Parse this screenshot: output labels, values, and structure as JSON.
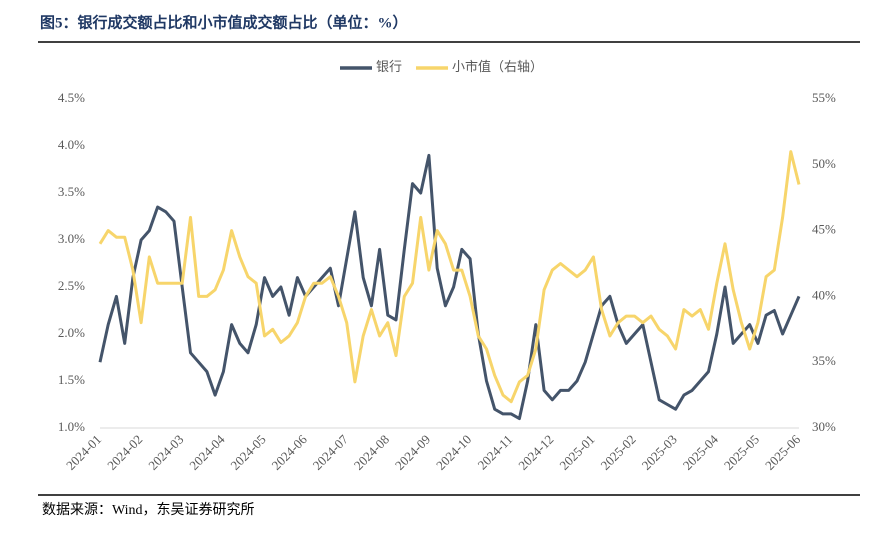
{
  "chart_data": {
    "type": "line",
    "title": "图5：银行成交额占比和小市值成交额占比（单位：%）",
    "source": "数据来源：Wind，东吴证券研究所",
    "categories": [
      "2024-01",
      null,
      null,
      null,
      null,
      "2024-02",
      null,
      null,
      null,
      null,
      "2024-03",
      null,
      null,
      null,
      null,
      "2024-04",
      null,
      null,
      null,
      null,
      "2024-05",
      null,
      null,
      null,
      null,
      "2024-06",
      null,
      null,
      null,
      null,
      "2024-07",
      null,
      null,
      null,
      null,
      "2024-08",
      null,
      null,
      null,
      null,
      "2024-09",
      null,
      null,
      null,
      null,
      "2024-10",
      null,
      null,
      null,
      null,
      "2024-11",
      null,
      null,
      null,
      null,
      "2024-12",
      null,
      null,
      null,
      null,
      "2025-01",
      null,
      null,
      null,
      null,
      "2025-02",
      null,
      null,
      null,
      null,
      "2025-03",
      null,
      null,
      null,
      null,
      "2025-04",
      null,
      null,
      null,
      null,
      "2025-05",
      null,
      null,
      null,
      null,
      "2025-06"
    ],
    "series": [
      {
        "name": "银行",
        "color": "#44546a",
        "axis": "y",
        "values": [
          1.7,
          2.1,
          2.4,
          1.9,
          2.6,
          3.0,
          3.1,
          3.35,
          3.3,
          3.2,
          2.5,
          1.8,
          1.7,
          1.6,
          1.35,
          1.6,
          2.1,
          1.9,
          1.8,
          2.1,
          2.6,
          2.4,
          2.5,
          2.2,
          2.6,
          2.4,
          2.5,
          2.6,
          2.7,
          2.3,
          2.8,
          3.3,
          2.6,
          2.3,
          2.9,
          2.2,
          2.15,
          2.9,
          3.6,
          3.5,
          3.9,
          2.7,
          2.3,
          2.5,
          2.9,
          2.8,
          2.0,
          1.5,
          1.2,
          1.15,
          1.15,
          1.1,
          1.5,
          2.1,
          1.4,
          1.3,
          1.4,
          1.4,
          1.5,
          1.7,
          2.0,
          2.3,
          2.4,
          2.1,
          1.9,
          2.0,
          2.1,
          1.7,
          1.3,
          1.25,
          1.2,
          1.35,
          1.4,
          1.5,
          1.6,
          2.0,
          2.5,
          1.9,
          2.0,
          2.1,
          1.9,
          2.2,
          2.25,
          2.0,
          2.2,
          2.4
        ]
      },
      {
        "name": "小市值（右轴）",
        "color": "#f7d56b",
        "axis": "y2",
        "values": [
          44,
          45,
          44.5,
          44.5,
          42,
          38,
          43,
          41,
          41,
          41,
          41,
          46,
          40,
          40,
          40.5,
          42,
          45,
          43,
          41.5,
          41,
          37,
          37.5,
          36.5,
          37,
          38,
          40,
          41,
          41,
          41.5,
          40,
          38,
          33.5,
          37,
          39,
          37,
          38,
          35.5,
          40,
          41,
          46,
          42,
          45,
          44,
          42,
          42,
          40,
          37,
          36,
          34,
          32.5,
          32,
          33.5,
          34,
          36,
          40.5,
          42,
          42.5,
          42,
          41.5,
          42,
          43,
          39,
          37,
          38,
          38.5,
          38.5,
          38,
          38.5,
          37.5,
          37,
          36,
          39,
          38.5,
          39,
          37.5,
          41,
          44,
          40.5,
          38,
          36,
          38,
          41.5,
          42,
          46,
          51,
          48.5
        ]
      }
    ],
    "ylim": [
      1.0,
      4.5
    ],
    "yticks": [
      {
        "value": 1.0,
        "label": "1.0%"
      },
      {
        "value": 1.5,
        "label": "1.5%"
      },
      {
        "value": 2.0,
        "label": "2.0%"
      },
      {
        "value": 2.5,
        "label": "2.5%"
      },
      {
        "value": 3.0,
        "label": "3.0%"
      },
      {
        "value": 3.5,
        "label": "3.5%"
      },
      {
        "value": 4.0,
        "label": "4.0%"
      },
      {
        "value": 4.5,
        "label": "4.5%"
      }
    ],
    "y2lim": [
      30,
      55
    ],
    "y2ticks": [
      {
        "value": 30,
        "label": "30%"
      },
      {
        "value": 35,
        "label": "35%"
      },
      {
        "value": 40,
        "label": "40%"
      },
      {
        "value": 45,
        "label": "45%"
      },
      {
        "value": 50,
        "label": "50%"
      },
      {
        "value": 55,
        "label": "55%"
      }
    ],
    "legend": "top",
    "grid": false
  }
}
